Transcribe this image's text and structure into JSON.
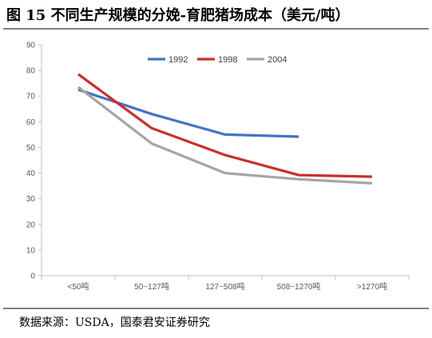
{
  "title": "图 15 不同生产规模的分娩-育肥猪场成本（美元/吨）",
  "source": "数据来源：USDA，国泰君安证券研究",
  "chart_data": {
    "type": "line",
    "title": "图 15 不同生产规模的分娩-育肥猪场成本（美元/吨）",
    "xlabel": "",
    "ylabel": "",
    "categories": [
      "<50吨",
      "50~127吨",
      "127~508吨",
      "508~1270吨",
      ">1270吨"
    ],
    "ylim": [
      0,
      90
    ],
    "yticks": [
      "0",
      "10",
      "20",
      "30",
      "40",
      "50",
      "60",
      "70",
      "80",
      "90"
    ],
    "grid": false,
    "legend_position": "top",
    "series": [
      {
        "name": "1992",
        "color": "#4472c4",
        "values": [
          72.5,
          63,
          55,
          54.2,
          null
        ]
      },
      {
        "name": "1998",
        "color": "#c9302c",
        "values": [
          78.5,
          57.5,
          47,
          39.2,
          38.6
        ]
      },
      {
        "name": "2004",
        "color": "#a5a5a5",
        "values": [
          73.5,
          51.5,
          40,
          37.6,
          36
        ]
      }
    ]
  }
}
